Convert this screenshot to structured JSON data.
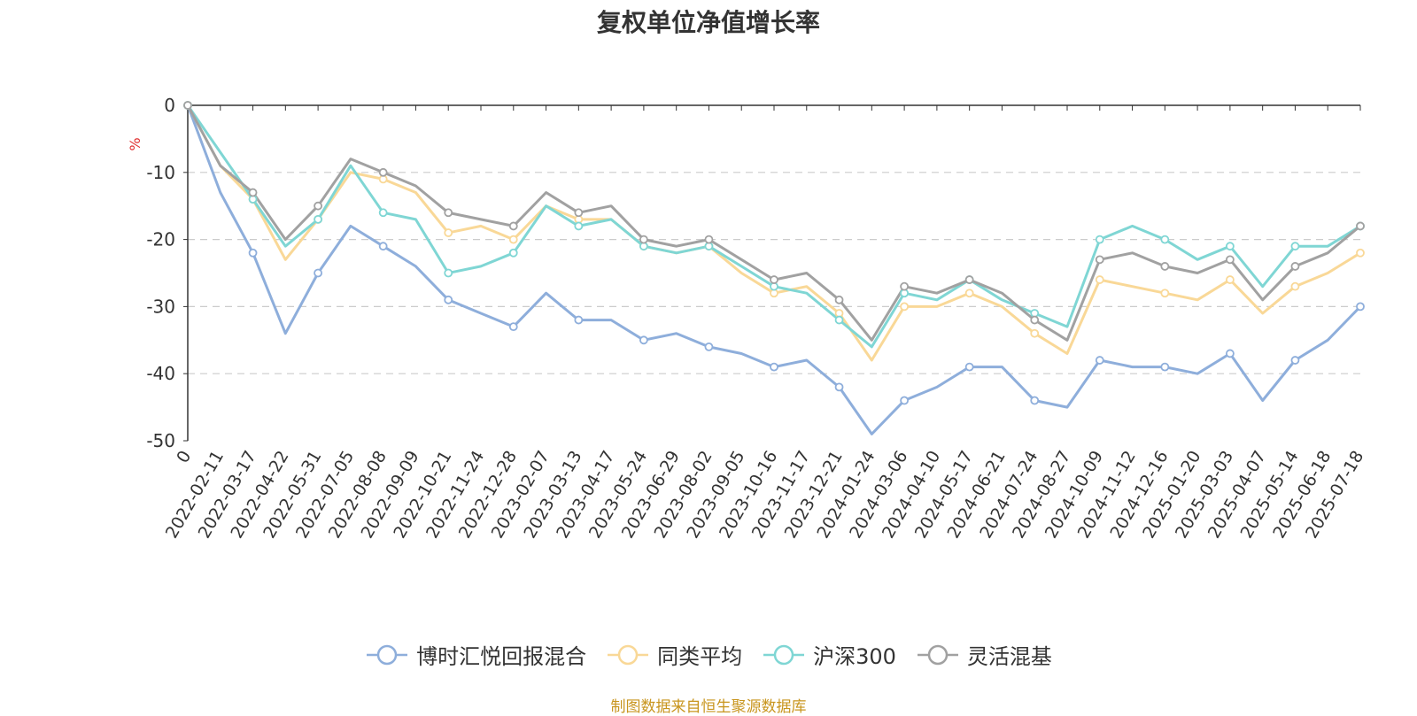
{
  "chart_data": {
    "type": "line",
    "title": "复权单位净值增长率",
    "ylabel": "%",
    "ylim": [
      -50,
      0
    ],
    "yticks": [
      0,
      -10,
      -20,
      -30,
      -40,
      -50
    ],
    "grid": true,
    "legend_position": "bottom",
    "x_tick_labels": [
      "0",
      "2022-02-11",
      "2022-03-17",
      "2022-04-22",
      "2022-05-31",
      "2022-07-05",
      "2022-08-08",
      "2022-09-09",
      "2022-10-21",
      "2022-11-24",
      "2022-12-28",
      "2023-02-07",
      "2023-03-13",
      "2023-04-17",
      "2023-05-24",
      "2023-06-29",
      "2023-08-02",
      "2023-09-05",
      "2023-10-16",
      "2023-11-17",
      "2023-12-21",
      "2024-01-24",
      "2024-03-06",
      "2024-04-10",
      "2024-05-17",
      "2024-06-21",
      "2024-07-24",
      "2024-08-27",
      "2024-10-09",
      "2024-11-12",
      "2024-12-16",
      "2025-01-20",
      "2025-03-03",
      "2025-04-07",
      "2025-05-14",
      "2025-06-18",
      "2025-07-18"
    ],
    "x": [
      "0",
      "2022-02-11",
      "2022-03-17",
      "2022-04-22",
      "2022-05-31",
      "2022-07-05",
      "2022-08-08",
      "2022-09-09",
      "2022-10-21",
      "2022-11-24",
      "2022-12-28",
      "2023-02-07",
      "2023-03-13",
      "2023-04-17",
      "2023-05-24",
      "2023-06-29",
      "2023-08-02",
      "2023-09-05",
      "2023-10-16",
      "2023-11-17",
      "2023-12-21",
      "2024-01-24",
      "2024-03-06",
      "2024-04-10",
      "2024-05-17",
      "2024-06-21",
      "2024-07-24",
      "2024-08-27",
      "2024-10-09",
      "2024-11-12",
      "2024-12-16",
      "2025-01-20",
      "2025-03-03",
      "2025-04-07",
      "2025-05-14",
      "2025-06-18",
      "2025-07-18"
    ],
    "series": [
      {
        "name": "博时汇悦回报混合",
        "color": "#8eaedb",
        "values": [
          0,
          -13,
          -22,
          -34,
          -25,
          -18,
          -21,
          -24,
          -29,
          -31,
          -33,
          -28,
          -32,
          -32,
          -35,
          -34,
          -36,
          -37,
          -39,
          -38,
          -42,
          -49,
          -44,
          -42,
          -39,
          -39,
          -44,
          -45,
          -38,
          -39,
          -39,
          -40,
          -37,
          -44,
          -38,
          -35,
          -30
        ]
      },
      {
        "name": "同类平均",
        "color": "#f9d897",
        "values": [
          0,
          -9,
          -14,
          -23,
          -17,
          -10,
          -11,
          -13,
          -19,
          -18,
          -20,
          -15,
          -17,
          -17,
          -21,
          -22,
          -21,
          -25,
          -28,
          -27,
          -31,
          -38,
          -30,
          -30,
          -28,
          -30,
          -34,
          -37,
          -26,
          -27,
          -28,
          -29,
          -26,
          -31,
          -27,
          -25,
          -22
        ]
      },
      {
        "name": "沪深300",
        "color": "#7fd6d4",
        "values": [
          0,
          -7,
          -14,
          -21,
          -17,
          -9,
          -16,
          -17,
          -25,
          -24,
          -22,
          -15,
          -18,
          -17,
          -21,
          -22,
          -21,
          -24,
          -27,
          -28,
          -32,
          -36,
          -28,
          -29,
          -26,
          -29,
          -31,
          -33,
          -20,
          -18,
          -20,
          -23,
          -21,
          -27,
          -21,
          -21,
          -18
        ]
      },
      {
        "name": "灵活混基",
        "color": "#a1a1a1",
        "values": [
          0,
          -9,
          -13,
          -20,
          -15,
          -8,
          -10,
          -12,
          -16,
          -17,
          -18,
          -13,
          -16,
          -15,
          -20,
          -21,
          -20,
          -23,
          -26,
          -25,
          -29,
          -35,
          -27,
          -28,
          -26,
          -28,
          -32,
          -35,
          -23,
          -22,
          -24,
          -25,
          -23,
          -29,
          -24,
          -22,
          -18
        ]
      }
    ]
  },
  "source_note": "制图数据来自恒生聚源数据库"
}
